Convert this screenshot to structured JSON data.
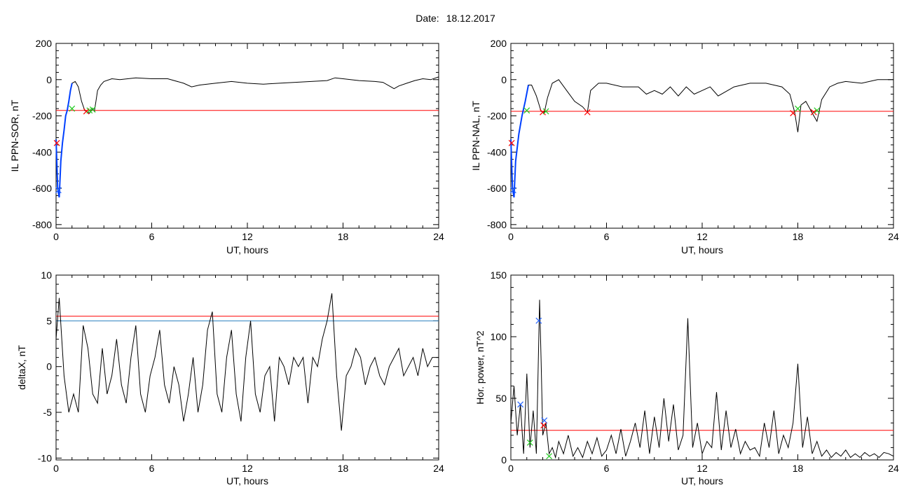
{
  "header": {
    "date_label": "Date:",
    "date_value": "18.12.2017"
  },
  "colors": {
    "threshold": "#ff0000",
    "series": "#000000",
    "highlight": "#0040ff",
    "marker_red": "#ff0000",
    "marker_green": "#22cc22",
    "marker_blue": "#2060ff",
    "line_blue": "#2a7fbf"
  },
  "chart_data": [
    {
      "id": "p1",
      "type": "line",
      "xlabel": "UT, hours",
      "ylabel": "IL PPN-SOR, nT",
      "xlim": [
        0,
        24
      ],
      "ylim": [
        -820,
        200
      ],
      "xticks": [
        "0",
        "6",
        "12",
        "18",
        "24"
      ],
      "yticks": [
        "200",
        "0",
        "-200",
        "-400",
        "-600",
        "-800"
      ],
      "threshold": -170,
      "series": [
        {
          "x": [
            0,
            0.1,
            0.2,
            0.3,
            0.4,
            0.5,
            0.6,
            0.7,
            0.8,
            0.9,
            1.0,
            1.2,
            1.4,
            1.6,
            1.8,
            1.9,
            2.0,
            2.1,
            2.2,
            2.3,
            2.4,
            2.5,
            2.6,
            2.8,
            3.0,
            3.5,
            4,
            5,
            6,
            7,
            8,
            8.5,
            9,
            10,
            11,
            12,
            13,
            14,
            15,
            16,
            17,
            17.5,
            18,
            19,
            20,
            20.5,
            21,
            21.2,
            21.5,
            22,
            22.5,
            23,
            23.5,
            24
          ],
          "y": [
            -330,
            -600,
            -650,
            -450,
            -350,
            -280,
            -200,
            -170,
            -120,
            -60,
            -20,
            -10,
            -40,
            -120,
            -170,
            -175,
            -180,
            -185,
            -170,
            -160,
            -175,
            -120,
            -60,
            -30,
            -10,
            5,
            0,
            10,
            5,
            5,
            -20,
            -40,
            -30,
            -20,
            -10,
            -20,
            -25,
            -20,
            -15,
            -10,
            -5,
            10,
            5,
            -5,
            -10,
            -15,
            -40,
            -50,
            -35,
            -20,
            -5,
            5,
            0,
            15
          ]
        }
      ],
      "highlight": {
        "x": [
          0,
          0.1,
          0.2,
          0.3,
          0.4,
          0.5,
          0.6,
          0.7,
          0.8,
          0.9,
          1.0
        ],
        "y": [
          -330,
          -600,
          -650,
          -450,
          -350,
          -280,
          -200,
          -170,
          -120,
          -60,
          -20
        ]
      },
      "markers": [
        {
          "x": 0.05,
          "y": -350,
          "color": "red"
        },
        {
          "x": 0.15,
          "y": -610,
          "color": "blue"
        },
        {
          "x": 1.0,
          "y": -160,
          "color": "green"
        },
        {
          "x": 1.9,
          "y": -175,
          "color": "red"
        },
        {
          "x": 2.1,
          "y": -170,
          "color": "green"
        },
        {
          "x": 2.3,
          "y": -165,
          "color": "green"
        }
      ]
    },
    {
      "id": "p2",
      "type": "line",
      "xlabel": "UT, hours",
      "ylabel": "IL PPN-NAL, nT",
      "xlim": [
        0,
        24
      ],
      "ylim": [
        -820,
        200
      ],
      "xticks": [
        "0",
        "6",
        "12",
        "18",
        "24"
      ],
      "yticks": [
        "200",
        "0",
        "-200",
        "-400",
        "-600",
        "-800"
      ],
      "threshold": -175,
      "series": [
        {
          "x": [
            0,
            0.1,
            0.2,
            0.3,
            0.5,
            0.7,
            0.9,
            1.1,
            1.3,
            1.6,
            1.9,
            2.1,
            2.3,
            2.6,
            3,
            3.5,
            4,
            4.5,
            4.8,
            5,
            5.5,
            6,
            7,
            8,
            8.5,
            9,
            9.5,
            10,
            10.5,
            11,
            11.5,
            12,
            12.5,
            13,
            14,
            15,
            16,
            17,
            17.5,
            17.8,
            18,
            18.2,
            18.5,
            19,
            19.2,
            19.5,
            20,
            20.5,
            21,
            22,
            23,
            24
          ],
          "y": [
            -330,
            -600,
            -650,
            -450,
            -300,
            -200,
            -120,
            -30,
            -30,
            -90,
            -175,
            -180,
            -100,
            -20,
            0,
            -60,
            -120,
            -150,
            -180,
            -60,
            -20,
            -20,
            -40,
            -40,
            -80,
            -60,
            -80,
            -40,
            -90,
            -40,
            -80,
            -60,
            -40,
            -90,
            -40,
            -20,
            -20,
            -40,
            -80,
            -180,
            -290,
            -140,
            -120,
            -200,
            -230,
            -110,
            -40,
            -20,
            -10,
            -20,
            0,
            0
          ]
        }
      ],
      "highlight": {
        "x": [
          0,
          0.1,
          0.2,
          0.3,
          0.5,
          0.7,
          0.9,
          1.1
        ],
        "y": [
          -330,
          -600,
          -650,
          -450,
          -300,
          -200,
          -120,
          -30
        ]
      },
      "markers": [
        {
          "x": 0.05,
          "y": -350,
          "color": "red"
        },
        {
          "x": 0.15,
          "y": -610,
          "color": "blue"
        },
        {
          "x": 1.0,
          "y": -170,
          "color": "green"
        },
        {
          "x": 2.0,
          "y": -180,
          "color": "red"
        },
        {
          "x": 2.2,
          "y": -175,
          "color": "green"
        },
        {
          "x": 4.8,
          "y": -180,
          "color": "red"
        },
        {
          "x": 17.7,
          "y": -185,
          "color": "red"
        },
        {
          "x": 18.0,
          "y": -160,
          "color": "green"
        },
        {
          "x": 19.0,
          "y": -180,
          "color": "red"
        },
        {
          "x": 19.2,
          "y": -170,
          "color": "green"
        }
      ]
    },
    {
      "id": "p3",
      "type": "line",
      "xlabel": "UT, hours",
      "ylabel": "deltaX, nT",
      "xlim": [
        0,
        24
      ],
      "ylim": [
        -10.2,
        10
      ],
      "xticks": [
        "0",
        "6",
        "12",
        "18",
        "24"
      ],
      "yticks": [
        "10",
        "5",
        "0",
        "-5",
        "-10"
      ],
      "threshold": 5.5,
      "threshold2": 5.0,
      "series": [
        {
          "x": [
            0,
            0.2,
            0.5,
            0.8,
            1.1,
            1.4,
            1.7,
            2.0,
            2.3,
            2.6,
            2.9,
            3.2,
            3.5,
            3.8,
            4.1,
            4.4,
            4.7,
            5.0,
            5.3,
            5.6,
            5.9,
            6.2,
            6.5,
            6.8,
            7.1,
            7.4,
            7.7,
            8.0,
            8.3,
            8.6,
            8.9,
            9.2,
            9.5,
            9.8,
            10.1,
            10.4,
            10.7,
            11.0,
            11.3,
            11.6,
            11.9,
            12.2,
            12.5,
            12.8,
            13.1,
            13.4,
            13.7,
            14.0,
            14.3,
            14.6,
            14.9,
            15.2,
            15.5,
            15.8,
            16.1,
            16.4,
            16.7,
            17.0,
            17.3,
            17.6,
            17.9,
            18.2,
            18.5,
            18.8,
            19.1,
            19.4,
            19.7,
            20.0,
            20.3,
            20.6,
            20.9,
            21.2,
            21.5,
            21.8,
            22.1,
            22.4,
            22.7,
            23.0,
            23.3,
            23.6,
            24
          ],
          "y": [
            3,
            7.5,
            -1,
            -5,
            -3,
            -5,
            4.5,
            2,
            -3,
            -4,
            2,
            -3,
            -1,
            3,
            -2,
            -4,
            1,
            4.5,
            -3,
            -5,
            -1,
            1,
            4,
            -2,
            -4,
            0,
            -2,
            -6,
            -3,
            1,
            -5,
            -2,
            4,
            6,
            -3,
            -5,
            1,
            4,
            -3,
            -6,
            1,
            5,
            -3,
            -5,
            -1,
            0,
            -6,
            1,
            0,
            -2,
            1,
            0,
            1,
            -4,
            1,
            0,
            3,
            5,
            8,
            -1,
            -7,
            -1,
            0,
            2,
            1,
            -2,
            0,
            1,
            -1,
            -2,
            0,
            1,
            2,
            -1,
            0,
            1,
            -1,
            2,
            0,
            1,
            1
          ]
        }
      ]
    },
    {
      "id": "p4",
      "type": "line",
      "xlabel": "UT, hours",
      "ylabel": "Hor. power, nT^2",
      "xlim": [
        0,
        24
      ],
      "ylim": [
        0,
        150
      ],
      "xticks": [
        "0",
        "6",
        "12",
        "18",
        "24"
      ],
      "yticks": [
        "150",
        "100",
        "50",
        "0"
      ],
      "threshold": 24,
      "series": [
        {
          "x": [
            0,
            0.2,
            0.4,
            0.6,
            0.8,
            1.0,
            1.2,
            1.4,
            1.6,
            1.8,
            1.9,
            2.0,
            2.2,
            2.4,
            2.6,
            2.8,
            3.0,
            3.3,
            3.6,
            3.9,
            4.2,
            4.5,
            4.8,
            5.1,
            5.4,
            5.7,
            6.0,
            6.3,
            6.6,
            6.9,
            7.2,
            7.5,
            7.8,
            8.1,
            8.4,
            8.7,
            9.0,
            9.3,
            9.6,
            9.9,
            10.2,
            10.5,
            10.8,
            11.1,
            11.4,
            11.7,
            12.0,
            12.3,
            12.6,
            12.9,
            13.2,
            13.5,
            13.8,
            14.1,
            14.4,
            14.7,
            15.0,
            15.3,
            15.6,
            15.9,
            16.2,
            16.5,
            16.8,
            17.1,
            17.4,
            17.7,
            18.0,
            18.3,
            18.6,
            18.9,
            19.2,
            19.5,
            19.8,
            20.1,
            20.4,
            20.7,
            21.0,
            21.3,
            21.6,
            21.9,
            22.2,
            22.5,
            22.8,
            23.1,
            23.4,
            23.7,
            24
          ],
          "y": [
            30,
            60,
            20,
            45,
            5,
            70,
            10,
            40,
            5,
            130,
            80,
            20,
            30,
            5,
            10,
            2,
            15,
            5,
            20,
            3,
            10,
            2,
            15,
            5,
            18,
            3,
            8,
            20,
            5,
            25,
            3,
            15,
            30,
            10,
            40,
            5,
            35,
            10,
            50,
            15,
            45,
            8,
            20,
            115,
            10,
            30,
            5,
            15,
            10,
            55,
            8,
            40,
            10,
            25,
            5,
            15,
            8,
            10,
            3,
            30,
            10,
            40,
            5,
            20,
            10,
            30,
            78,
            10,
            35,
            5,
            15,
            3,
            8,
            2,
            6,
            3,
            8,
            2,
            5,
            2,
            6,
            3,
            5,
            2,
            6,
            5,
            3
          ]
        }
      ],
      "markers": [
        {
          "x": 0.6,
          "y": 45,
          "color": "blue"
        },
        {
          "x": 1.2,
          "y": 14,
          "color": "green"
        },
        {
          "x": 1.75,
          "y": 113,
          "color": "blue"
        },
        {
          "x": 2.1,
          "y": 32,
          "color": "blue"
        },
        {
          "x": 2.05,
          "y": 28,
          "color": "red"
        },
        {
          "x": 2.4,
          "y": 3,
          "color": "green"
        }
      ]
    }
  ]
}
